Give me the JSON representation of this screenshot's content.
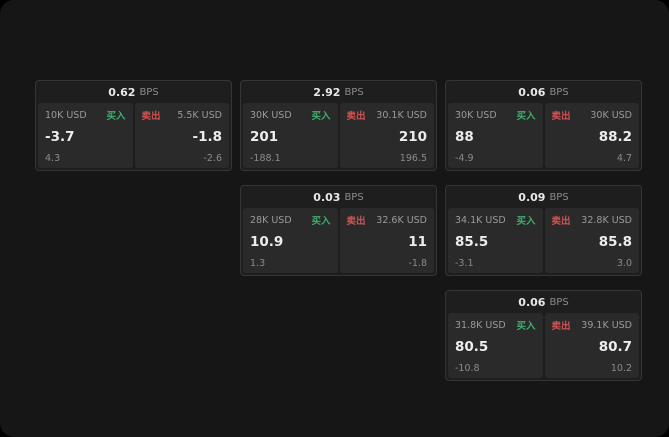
{
  "labels": {
    "bps": "BPS",
    "buy": "买入",
    "sell": "卖出"
  },
  "colors": {
    "background": "#161616",
    "card_bg": "#1e1e1e",
    "panel_bg": "#2a2a2a",
    "buy_accent": "#3fae6e",
    "sell_accent": "#d05353"
  },
  "cards": [
    {
      "bps": "0.62",
      "buy": {
        "size": "10K USD",
        "price": "-3.7",
        "change": "4.3"
      },
      "sell": {
        "size": "5.5K USD",
        "price": "-1.8",
        "change": "-2.6"
      }
    },
    {
      "bps": "2.92",
      "buy": {
        "size": "30K USD",
        "price": "201",
        "change": "-188.1"
      },
      "sell": {
        "size": "30.1K USD",
        "price": "210",
        "change": "196.5"
      }
    },
    {
      "bps": "0.06",
      "buy": {
        "size": "30K USD",
        "price": "88",
        "change": "-4.9"
      },
      "sell": {
        "size": "30K USD",
        "price": "88.2",
        "change": "4.7"
      }
    },
    {
      "bps": "0.03",
      "buy": {
        "size": "28K USD",
        "price": "10.9",
        "change": "1.3"
      },
      "sell": {
        "size": "32.6K USD",
        "price": "11",
        "change": "-1.8"
      }
    },
    {
      "bps": "0.09",
      "buy": {
        "size": "34.1K USD",
        "price": "85.5",
        "change": "-3.1"
      },
      "sell": {
        "size": "32.8K USD",
        "price": "85.8",
        "change": "3.0"
      }
    },
    {
      "bps": "0.06",
      "buy": {
        "size": "31.8K USD",
        "price": "80.5",
        "change": "-10.8"
      },
      "sell": {
        "size": "39.1K USD",
        "price": "80.7",
        "change": "10.2"
      }
    }
  ]
}
